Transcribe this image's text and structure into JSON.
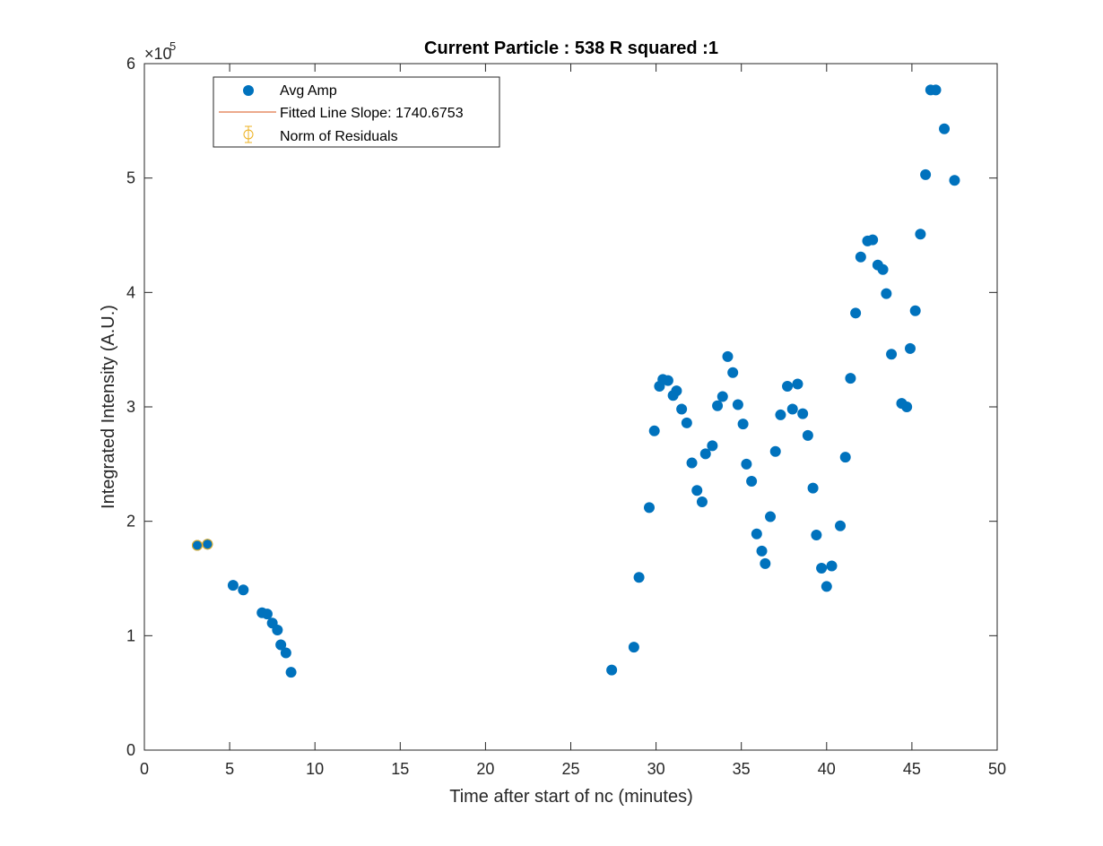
{
  "chart_data": {
    "type": "scatter",
    "title": "Current Particle : 538   R squared :1",
    "xlabel": "Time after start of nc (minutes)",
    "ylabel": "Integrated Intensity (A.U.)",
    "xlim": [
      0,
      50
    ],
    "ylim": [
      0,
      600000
    ],
    "xticks": [
      0,
      5,
      10,
      15,
      20,
      25,
      30,
      35,
      40,
      45,
      50
    ],
    "yticks": [
      0,
      100000,
      200000,
      300000,
      400000,
      500000,
      600000
    ],
    "ytick_labels": [
      "0",
      "1",
      "2",
      "3",
      "4",
      "5",
      "6"
    ],
    "y_exponent_base": "×10",
    "y_exponent": "5",
    "grid": false,
    "legend_position": "top-left",
    "legend": [
      {
        "label": "Avg Amp",
        "marker": "filled-circle",
        "color": "#0072BD"
      },
      {
        "label": "Fitted Line Slope: 1740.6753",
        "marker": "line",
        "color": "#D95319"
      },
      {
        "label": "Norm of Residuals",
        "marker": "errorbar-circle",
        "color": "#EDB120"
      }
    ],
    "series": [
      {
        "name": "Avg Amp",
        "color": "#0072BD",
        "x": [
          3.1,
          3.7,
          5.2,
          5.8,
          6.9,
          7.2,
          7.5,
          7.8,
          8.0,
          8.3,
          8.6,
          27.4,
          28.7,
          29.0,
          29.6,
          29.9,
          30.2,
          30.4,
          30.7,
          31.0,
          31.2,
          31.5,
          31.8,
          32.1,
          32.4,
          32.7,
          32.9,
          33.3,
          33.6,
          33.9,
          34.2,
          34.5,
          34.8,
          35.1,
          35.3,
          35.6,
          35.9,
          36.2,
          36.4,
          36.7,
          37.0,
          37.3,
          37.7,
          38.0,
          38.3,
          38.6,
          38.9,
          39.2,
          39.4,
          39.7,
          40.0,
          40.3,
          40.8,
          41.1,
          41.4,
          41.7,
          42.0,
          42.4,
          42.7,
          43.0,
          43.3,
          43.5,
          43.8,
          44.4,
          44.7,
          44.9,
          45.2,
          45.5,
          45.8,
          46.1,
          46.4,
          46.9,
          47.5
        ],
        "y": [
          179000,
          180000,
          144000,
          140000,
          120000,
          119000,
          111000,
          105000,
          92000,
          85000,
          68000,
          70000,
          90000,
          151000,
          212000,
          279000,
          318000,
          324000,
          323000,
          310000,
          314000,
          298000,
          286000,
          251000,
          227000,
          217000,
          259000,
          266000,
          301000,
          309000,
          344000,
          330000,
          302000,
          285000,
          250000,
          235000,
          189000,
          174000,
          163000,
          204000,
          261000,
          293000,
          318000,
          298000,
          320000,
          294000,
          275000,
          229000,
          188000,
          159000,
          143000,
          161000,
          196000,
          256000,
          325000,
          382000,
          431000,
          445000,
          446000,
          424000,
          420000,
          399000,
          346000,
          303000,
          300000,
          351000,
          384000,
          451000,
          503000,
          577000,
          577000,
          543000,
          498000
        ]
      },
      {
        "name": "Norm of Residuals",
        "color": "#EDB120",
        "x": [
          3.1,
          3.7
        ],
        "y": [
          179000,
          180000
        ]
      }
    ]
  }
}
